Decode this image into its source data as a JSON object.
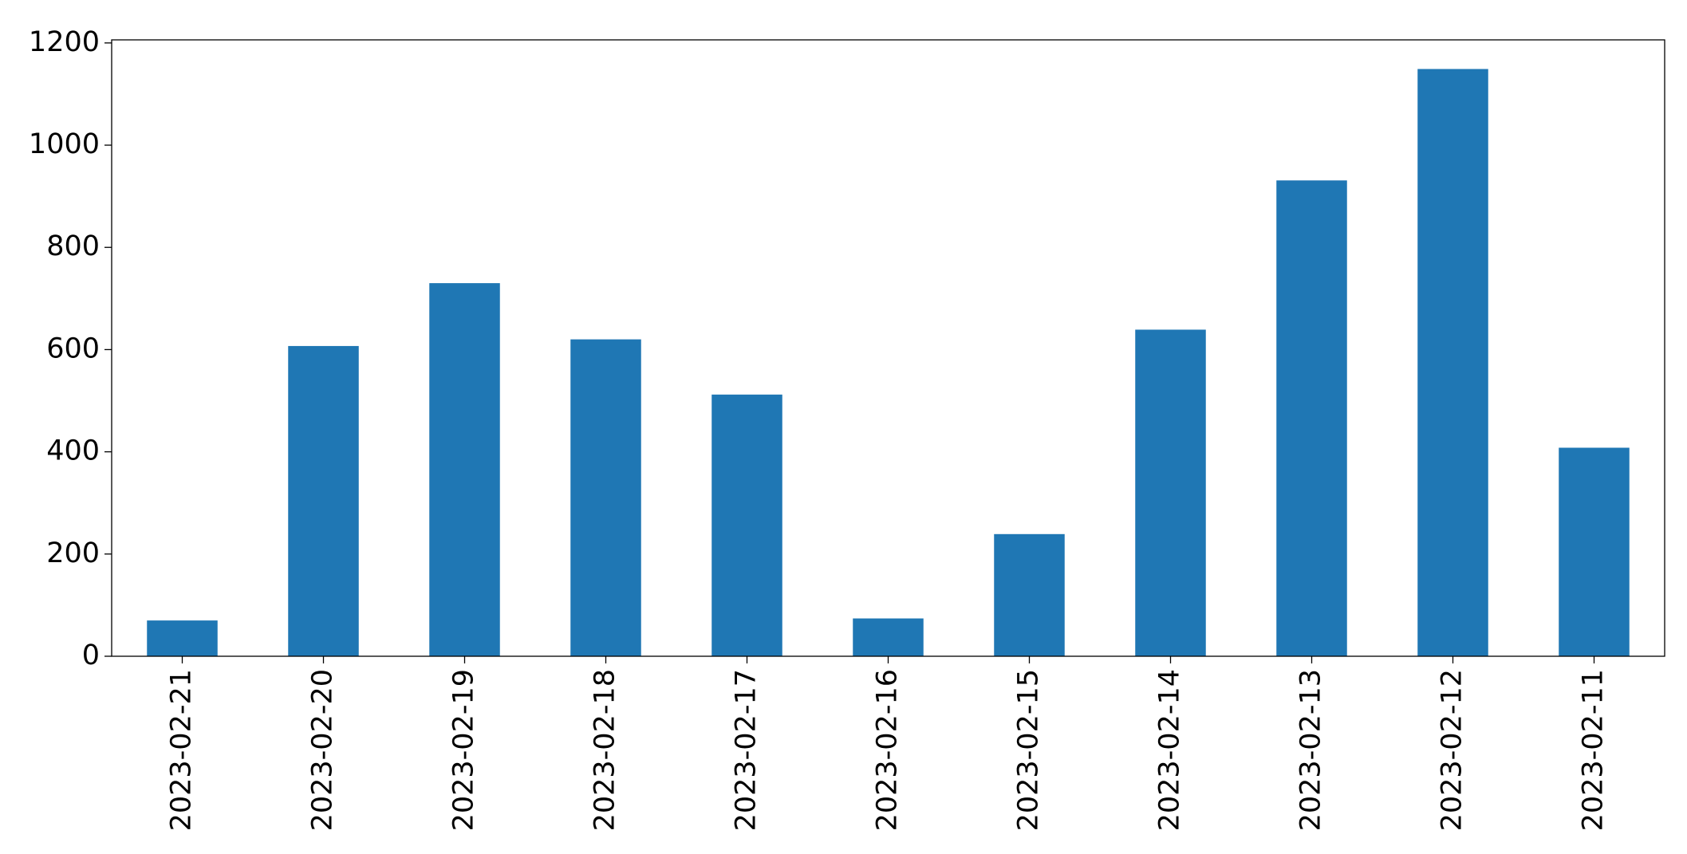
{
  "chart_data": {
    "type": "bar",
    "categories": [
      "2023-02-21",
      "2023-02-20",
      "2023-02-19",
      "2023-02-18",
      "2023-02-17",
      "2023-02-16",
      "2023-02-15",
      "2023-02-14",
      "2023-02-13",
      "2023-02-12",
      "2023-02-11"
    ],
    "values": [
      70,
      607,
      730,
      620,
      512,
      74,
      239,
      639,
      931,
      1149,
      408
    ],
    "color": "#1f77b4",
    "ylim": [
      0,
      1206
    ],
    "yticks": [
      0,
      200,
      400,
      600,
      800,
      1000,
      1200
    ],
    "grid": false
  }
}
